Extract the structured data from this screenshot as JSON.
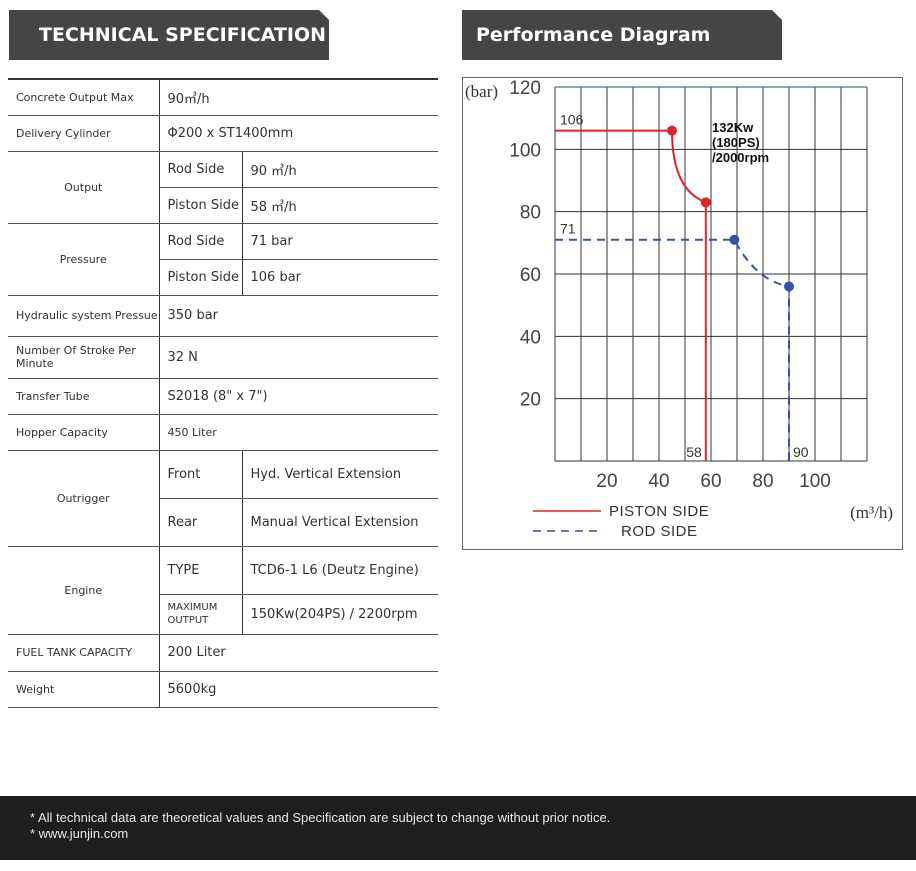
{
  "spec_title": "TECHNICAL SPECIFICATION",
  "perf_title": "Performance Diagram",
  "spec": {
    "concrete_output_max": {
      "label": "Concrete Output Max",
      "value": "90㎥/h"
    },
    "delivery_cylinder": {
      "label": "Delivery Cylinder",
      "value": "Φ200 x ST1400mm"
    },
    "output": {
      "label": "Output",
      "rod_label": "Rod Side",
      "rod_value": "90 ㎥/h",
      "piston_label": "Piston Side",
      "piston_value": "58 ㎥/h"
    },
    "pressure": {
      "label": "Pressure",
      "rod_label": "Rod Side",
      "rod_value": "71 bar",
      "piston_label": "Piston Side",
      "piston_value": "106 bar"
    },
    "hydraulic": {
      "label": "Hydraulic system Pressue",
      "value": "350 bar"
    },
    "strokes": {
      "label": "Number Of Stroke Per Minute",
      "value": "32 N"
    },
    "transfer_tube": {
      "label": "Transfer Tube",
      "value": "S2018 (8\" x 7\")"
    },
    "hopper": {
      "label": "Hopper Capacity",
      "value": "450 Liter"
    },
    "outrigger": {
      "label": "Outrigger",
      "front_label": "Front",
      "front_value": "Hyd. Vertical Extension",
      "rear_label": "Rear",
      "rear_value": "Manual Vertical Extension"
    },
    "engine": {
      "label": "Engine",
      "type_label": "TYPE",
      "type_value": "TCD6-1 L6 (Deutz Engine)",
      "max_label": "MAXIMUM OUTPUT",
      "max_value": "150Kw(204PS) / 2200rpm"
    },
    "fuel": {
      "label": "FUEL TANK CAPACITY",
      "value": "200 Liter"
    },
    "weight": {
      "label": "Weight",
      "value": "5600kg"
    }
  },
  "chart_data": {
    "type": "line",
    "ylabel": "(bar)",
    "xlabel": "(m³/h)",
    "xlim": [
      0,
      120
    ],
    "ylim": [
      0,
      120
    ],
    "x_ticks": [
      20,
      40,
      60,
      80,
      100
    ],
    "y_ticks": [
      20,
      40,
      60,
      80,
      100,
      120
    ],
    "grid": true,
    "annotation": [
      "132Kw",
      "(180PS)",
      "/2000rpm"
    ],
    "series": [
      {
        "name": "PISTON SIDE",
        "color": "#d9262c",
        "style": "solid",
        "points": [
          [
            0,
            106
          ],
          [
            45,
            106
          ],
          [
            58,
            83
          ],
          [
            58,
            0
          ]
        ],
        "markers": [
          [
            45,
            106
          ],
          [
            58,
            83
          ]
        ],
        "pressure_label": "106",
        "flow_label": "58"
      },
      {
        "name": "ROD SIDE",
        "color": "#3a4fa8",
        "style": "dashed",
        "points": [
          [
            0,
            71
          ],
          [
            69,
            71
          ],
          [
            90,
            56
          ],
          [
            90,
            0
          ]
        ],
        "markers": [
          [
            69,
            71
          ],
          [
            90,
            56
          ]
        ],
        "pressure_label": "71",
        "flow_label": "90"
      }
    ]
  },
  "footer": {
    "line1": "* All technical data are theoretical values and Specification are subject to change without prior notice.",
    "line2": "* www.junjin.com"
  }
}
